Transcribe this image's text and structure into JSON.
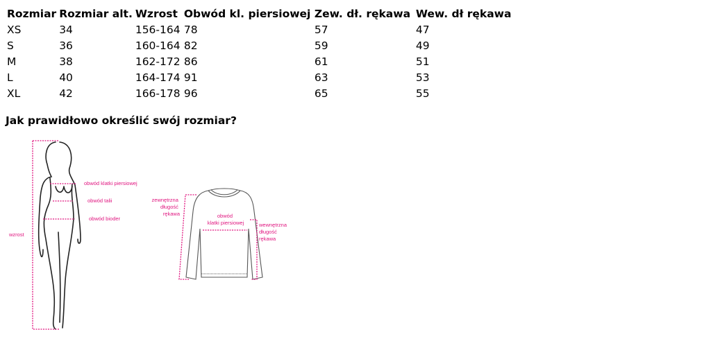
{
  "table": {
    "headers": [
      "Rozmiar",
      "Rozmiar alt.",
      "Wzrost",
      "Obwód kl. piersiowej",
      "Zew. dł. rękawa",
      "Wew. dł rękawa"
    ],
    "rows": [
      [
        "XS",
        "34",
        "156-164",
        "78",
        "57",
        "47"
      ],
      [
        "S",
        "36",
        "160-164",
        "82",
        "59",
        "49"
      ],
      [
        "M",
        "38",
        "162-172",
        "86",
        "61",
        "51"
      ],
      [
        "L",
        "40",
        "164-174",
        "91",
        "63",
        "53"
      ],
      [
        "XL",
        "42",
        "166-178",
        "96",
        "65",
        "55"
      ]
    ]
  },
  "guide": {
    "title": "Jak prawidłowo określić swój rozmiar?",
    "body_labels": {
      "chest": "obwód klatki piersiowej",
      "waist": "obwód talii",
      "hips": "obwód bioder",
      "height": "wzrost"
    },
    "shirt_labels": {
      "outer": [
        "zewnętrzna",
        "długość",
        "rękawa"
      ],
      "chest": [
        "obwód",
        "klatki piersiowej"
      ],
      "inner": [
        "wewnętrzna",
        "długość",
        "rękawa"
      ]
    },
    "accent_color": "#e0157f"
  }
}
